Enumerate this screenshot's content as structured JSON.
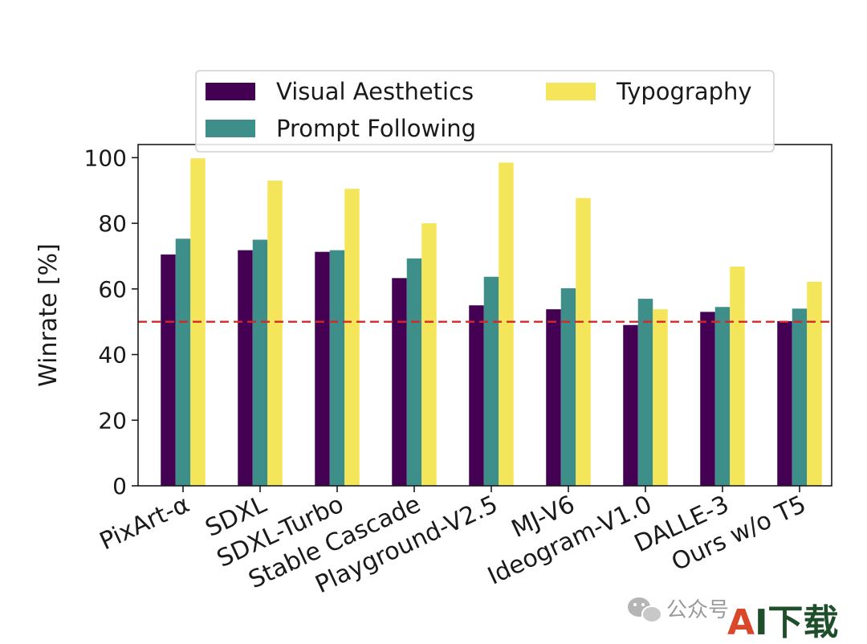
{
  "chart_data": {
    "type": "bar",
    "title": "",
    "xlabel": "",
    "ylabel": "Winrate [%]",
    "ylim": [
      0,
      104
    ],
    "yticks": [
      0,
      20,
      40,
      60,
      80,
      100
    ],
    "categories": [
      "PixArt-α",
      "SDXL",
      "SDXL-Turbo",
      "Stable Cascade",
      "Playground-V2.5",
      "MJ-V6",
      "Ideogram-V1.0",
      "DALLE-3",
      "Ours w/o T5"
    ],
    "series": [
      {
        "name": "Visual Aesthetics",
        "color": "#440154",
        "values": [
          70.5,
          71.8,
          71.3,
          63.3,
          55.0,
          53.8,
          49.0,
          53.0,
          50.2
        ]
      },
      {
        "name": "Prompt Following",
        "color": "#3e8e8a",
        "values": [
          75.3,
          75.0,
          71.8,
          69.3,
          63.7,
          60.2,
          57.0,
          54.5,
          54.0
        ]
      },
      {
        "name": "Typography",
        "color": "#f5e55a",
        "values": [
          99.8,
          93.0,
          90.5,
          80.0,
          98.5,
          87.7,
          53.8,
          66.8,
          62.2
        ]
      }
    ],
    "reference_line": {
      "y": 50,
      "color": "#d62728",
      "style": "dashed"
    },
    "legend": {
      "placement": "top",
      "columns": 2
    },
    "grid": false
  },
  "watermark": {
    "text": "公众号",
    "logo_text_a": "A",
    "logo_text_rest": "I下载",
    "logo_color_a": "#d9482b",
    "logo_color_rest": "#1f4f2a"
  }
}
